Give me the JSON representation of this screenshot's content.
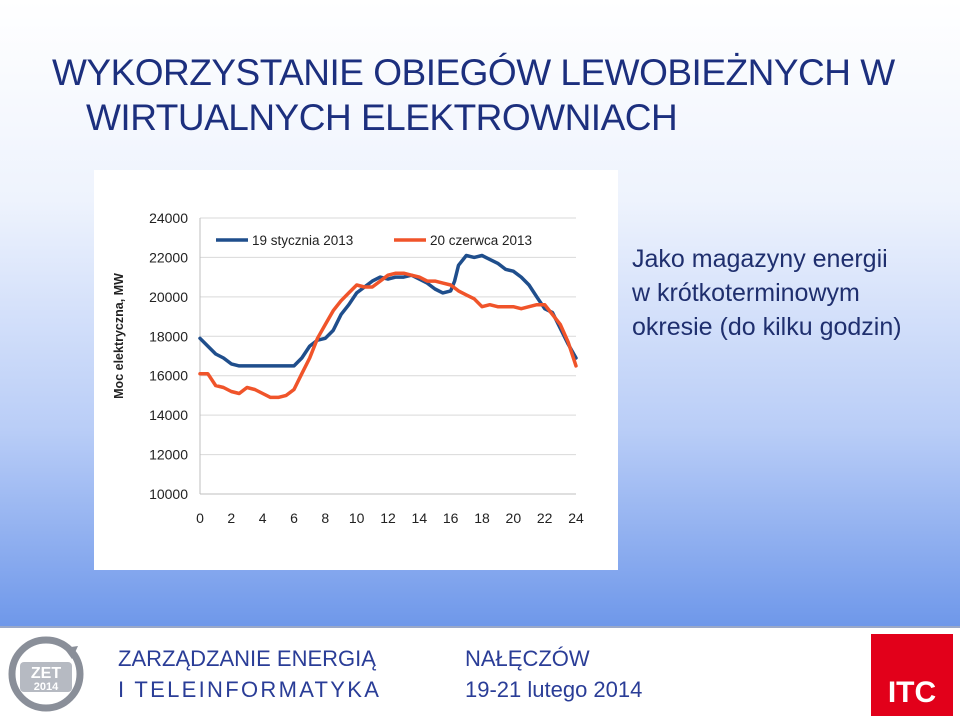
{
  "slide": {
    "title_line1": "WYKORZYSTANIE OBIEGÓW LEWOBIEŻNYCH W",
    "title_line2": "WIRTUALNYCH ELEKTROWNIACH",
    "note_line1": "Jako magazyny energii",
    "note_line2": "w krótkoterminowym",
    "note_line3": "okresie (do kilku godzin)"
  },
  "footer": {
    "org_line1": "ZARZĄDZANIE ENERGIĄ",
    "org_line2": "I TELEINFORMATYKA",
    "place": "NAŁĘCZÓW",
    "dates": "19-21 lutego 2014",
    "logo_text_top": "ZET",
    "logo_text_bottom": "2014",
    "itc_label": "ITC"
  },
  "colors": {
    "title": "#1c2f7e",
    "series_jan": "#1f4e8c",
    "series_jun": "#f0542a",
    "itc_red": "#e2001a"
  },
  "chart_data": {
    "type": "line",
    "ylabel": "Moc elektryczna, MW",
    "xlim": [
      0,
      24
    ],
    "ylim": [
      10000,
      24000
    ],
    "xticks": [
      0,
      2,
      4,
      6,
      8,
      10,
      12,
      14,
      16,
      18,
      20,
      22,
      24
    ],
    "yticks": [
      10000,
      12000,
      14000,
      16000,
      18000,
      20000,
      22000,
      24000
    ],
    "grid": true,
    "legend_position": "top",
    "series": [
      {
        "name": "19 stycznia 2013",
        "color": "#1f4e8c",
        "x": [
          0,
          0.5,
          1,
          1.5,
          2,
          2.5,
          3,
          3.5,
          4,
          4.5,
          5,
          5.5,
          6,
          6.5,
          7,
          7.5,
          8,
          8.5,
          9,
          9.5,
          10,
          10.5,
          11,
          11.5,
          12,
          12.5,
          13,
          13.5,
          14,
          14.5,
          15,
          15.5,
          16,
          16.25,
          16.5,
          17,
          17.5,
          18,
          18.5,
          19,
          19.5,
          20,
          20.5,
          21,
          21.5,
          22,
          22.5,
          23,
          23.5,
          24
        ],
        "y": [
          17900,
          17500,
          17100,
          16900,
          16600,
          16500,
          16500,
          16500,
          16500,
          16500,
          16500,
          16500,
          16500,
          16900,
          17500,
          17800,
          17900,
          18300,
          19100,
          19600,
          20200,
          20500,
          20800,
          21000,
          20900,
          21000,
          21000,
          21100,
          20900,
          20700,
          20400,
          20200,
          20300,
          20800,
          21600,
          22100,
          22000,
          22100,
          21900,
          21700,
          21400,
          21300,
          21000,
          20600,
          20000,
          19400,
          19200,
          18400,
          17600,
          16900
        ]
      },
      {
        "name": "20 czerwca 2013",
        "color": "#f0542a",
        "x": [
          0,
          0.5,
          1,
          1.5,
          2,
          2.5,
          3,
          3.5,
          4,
          4.5,
          5,
          5.5,
          6,
          6.5,
          7,
          7.5,
          8,
          8.5,
          9,
          9.5,
          10,
          10.5,
          11,
          11.5,
          12,
          12.5,
          13,
          13.5,
          14,
          14.5,
          15,
          15.5,
          16,
          16.5,
          17,
          17.5,
          18,
          18.5,
          19,
          19.5,
          20,
          20.5,
          21,
          21.5,
          22,
          22.5,
          23,
          23.5,
          24
        ],
        "y": [
          16100,
          16100,
          15500,
          15400,
          15200,
          15100,
          15400,
          15300,
          15100,
          14900,
          14900,
          15000,
          15300,
          16100,
          16900,
          17900,
          18600,
          19300,
          19800,
          20200,
          20600,
          20500,
          20500,
          20800,
          21100,
          21200,
          21200,
          21100,
          21000,
          20800,
          20800,
          20700,
          20600,
          20300,
          20100,
          19900,
          19500,
          19600,
          19500,
          19500,
          19500,
          19400,
          19500,
          19600,
          19600,
          19100,
          18600,
          17700,
          16500
        ]
      }
    ]
  }
}
